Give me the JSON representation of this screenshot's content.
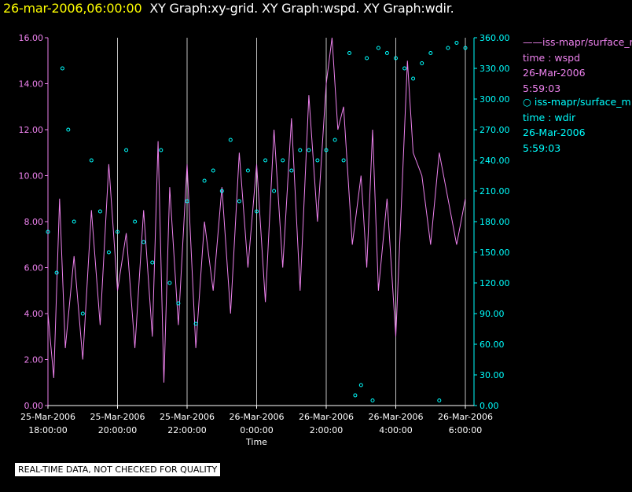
{
  "title": {
    "timestamp": "26-mar-2006,06:00:00",
    "graphs": "XY Graph:xy-grid.  XY Graph:wspd.  XY Graph:wdir."
  },
  "colors": {
    "wspd": "#ee82ee",
    "wdir": "#00ffff",
    "grid": "#bfbfbf",
    "axis_left": "#ee82ee",
    "axis_right": "#00ffff",
    "title_time": "#ffff00"
  },
  "legend": [
    {
      "marker": "——",
      "source": "iss-mapr/surface_m",
      "var": "time : wspd",
      "date": "26-Mar-2006",
      "time": "5:59:03"
    },
    {
      "marker": "○",
      "source": "iss-mapr/surface_m",
      "var": "time : wdir",
      "date": "26-Mar-2006",
      "time": "5:59:03"
    }
  ],
  "note": "REAL-TIME DATA, NOT CHECKED FOR QUALITY",
  "chart_data": {
    "type": "line",
    "xlabel": "Time",
    "x_ticks": [
      {
        "date": "25-Mar-2006",
        "time": "18:00:00"
      },
      {
        "date": "25-Mar-2006",
        "time": "20:00:00"
      },
      {
        "date": "25-Mar-2006",
        "time": "22:00:00"
      },
      {
        "date": "26-Mar-2006",
        "time": "0:00:00"
      },
      {
        "date": "26-Mar-2006",
        "time": "2:00:00"
      },
      {
        "date": "26-Mar-2006",
        "time": "4:00:00"
      },
      {
        "date": "26-Mar-2006",
        "time": "6:00:00"
      }
    ],
    "xlim": [
      "2006-03-25 18:00",
      "2006-03-26 06:00"
    ],
    "y_left": {
      "ticks": [
        "0.00",
        "2.00",
        "4.00",
        "6.00",
        "8.00",
        "10.00",
        "12.00",
        "14.00",
        "16.00"
      ],
      "lim": [
        0,
        16
      ]
    },
    "y_right": {
      "ticks": [
        "0.00",
        "30.00",
        "60.00",
        "90.00",
        "120.00",
        "150.00",
        "180.00",
        "210.00",
        "240.00",
        "270.00",
        "300.00",
        "330.00",
        "360.00"
      ],
      "lim": [
        0,
        360
      ]
    },
    "grid": "vertical lines at x ticks",
    "series": [
      {
        "variable": "wspd",
        "axis": "left",
        "style": "line",
        "x": [
          "2006-03-25 18:00",
          "2006-03-25 18:10",
          "2006-03-25 18:20",
          "2006-03-25 18:30",
          "2006-03-25 18:45",
          "2006-03-25 19:00",
          "2006-03-25 19:15",
          "2006-03-25 19:30",
          "2006-03-25 19:45",
          "2006-03-25 20:00",
          "2006-03-25 20:15",
          "2006-03-25 20:30",
          "2006-03-25 20:45",
          "2006-03-25 21:00",
          "2006-03-25 21:10",
          "2006-03-25 21:20",
          "2006-03-25 21:30",
          "2006-03-25 21:45",
          "2006-03-25 22:00",
          "2006-03-25 22:15",
          "2006-03-25 22:30",
          "2006-03-25 22:45",
          "2006-03-25 23:00",
          "2006-03-25 23:15",
          "2006-03-25 23:30",
          "2006-03-25 23:45",
          "2006-03-26 00:00",
          "2006-03-26 00:15",
          "2006-03-26 00:30",
          "2006-03-26 00:45",
          "2006-03-26 01:00",
          "2006-03-26 01:15",
          "2006-03-26 01:30",
          "2006-03-26 01:45",
          "2006-03-26 02:00",
          "2006-03-26 02:10",
          "2006-03-26 02:20",
          "2006-03-26 02:30",
          "2006-03-26 02:45",
          "2006-03-26 03:00",
          "2006-03-26 03:10",
          "2006-03-26 03:20",
          "2006-03-26 03:30",
          "2006-03-26 03:45",
          "2006-03-26 04:00",
          "2006-03-26 04:10",
          "2006-03-26 04:20",
          "2006-03-26 04:30",
          "2006-03-26 04:45",
          "2006-03-26 05:00",
          "2006-03-26 05:15",
          "2006-03-26 05:30",
          "2006-03-26 05:45",
          "2006-03-26 06:00"
        ],
        "y": [
          4.0,
          1.2,
          9.0,
          2.5,
          6.5,
          2.0,
          8.5,
          3.5,
          10.5,
          5.0,
          7.5,
          2.5,
          8.5,
          3.0,
          11.5,
          1.0,
          9.5,
          3.5,
          10.5,
          2.5,
          8.0,
          5.0,
          9.5,
          4.0,
          11.0,
          6.0,
          10.5,
          4.5,
          12.0,
          6.0,
          12.5,
          5.0,
          13.5,
          8.0,
          14.0,
          16.0,
          12.0,
          13.0,
          7.0,
          10.0,
          6.0,
          12.0,
          5.0,
          9.0,
          3.0,
          9.0,
          15.0,
          11.0,
          10.0,
          7.0,
          11.0,
          9.0,
          7.0,
          9.0
        ]
      },
      {
        "variable": "wdir",
        "axis": "right",
        "style": "circles",
        "x": [
          "2006-03-25 18:00",
          "2006-03-25 18:15",
          "2006-03-25 18:25",
          "2006-03-25 18:35",
          "2006-03-25 18:45",
          "2006-03-25 19:00",
          "2006-03-25 19:15",
          "2006-03-25 19:30",
          "2006-03-25 19:45",
          "2006-03-25 20:00",
          "2006-03-25 20:15",
          "2006-03-25 20:30",
          "2006-03-25 20:45",
          "2006-03-25 21:00",
          "2006-03-25 21:15",
          "2006-03-25 21:30",
          "2006-03-25 21:45",
          "2006-03-25 22:00",
          "2006-03-25 22:15",
          "2006-03-25 22:30",
          "2006-03-25 22:45",
          "2006-03-25 23:00",
          "2006-03-25 23:15",
          "2006-03-25 23:30",
          "2006-03-25 23:45",
          "2006-03-26 00:00",
          "2006-03-26 00:15",
          "2006-03-26 00:30",
          "2006-03-26 00:45",
          "2006-03-26 01:00",
          "2006-03-26 01:15",
          "2006-03-26 01:30",
          "2006-03-26 01:45",
          "2006-03-26 02:00",
          "2006-03-26 02:15",
          "2006-03-26 02:30",
          "2006-03-26 02:40",
          "2006-03-26 02:50",
          "2006-03-26 03:00",
          "2006-03-26 03:10",
          "2006-03-26 03:20",
          "2006-03-26 03:30",
          "2006-03-26 03:45",
          "2006-03-26 04:00",
          "2006-03-26 04:15",
          "2006-03-26 04:30",
          "2006-03-26 04:45",
          "2006-03-26 05:00",
          "2006-03-26 05:15",
          "2006-03-26 05:30",
          "2006-03-26 05:45",
          "2006-03-26 06:00"
        ],
        "y": [
          170,
          130,
          330,
          270,
          180,
          90,
          240,
          190,
          150,
          170,
          250,
          180,
          160,
          140,
          250,
          120,
          100,
          200,
          80,
          220,
          230,
          210,
          260,
          200,
          230,
          190,
          240,
          210,
          240,
          230,
          250,
          250,
          240,
          250,
          260,
          240,
          345,
          10,
          20,
          340,
          5,
          350,
          345,
          340,
          330,
          320,
          335,
          345,
          5,
          350,
          355,
          350
        ]
      }
    ]
  }
}
